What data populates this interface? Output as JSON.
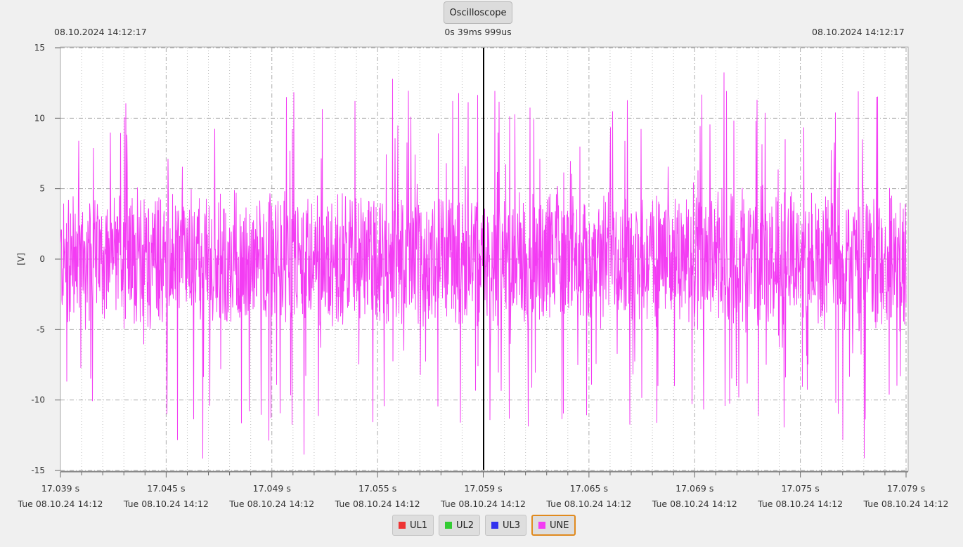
{
  "toolbar": {
    "oscilloscope_label": "Oscilloscope"
  },
  "header": {
    "start_time": "08.10.2024 14:12:17",
    "duration": "0s 39ms 999us",
    "end_time": "08.10.2024 14:12:17"
  },
  "chart_data": {
    "type": "line",
    "ylabel": "[V]",
    "ylim": [
      -15,
      15
    ],
    "y_ticks": [
      "15",
      "10",
      "5",
      "0",
      "-5",
      "-10",
      "-15"
    ],
    "x_ticks": [
      {
        "time": "17.039 s",
        "date": "Tue 08.10.24 14:12"
      },
      {
        "time": "17.045 s",
        "date": "Tue 08.10.24 14:12"
      },
      {
        "time": "17.049 s",
        "date": "Tue 08.10.24 14:12"
      },
      {
        "time": "17.055 s",
        "date": "Tue 08.10.24 14:12"
      },
      {
        "time": "17.059 s",
        "date": "Tue 08.10.24 14:12"
      },
      {
        "time": "17.065 s",
        "date": "Tue 08.10.24 14:12"
      },
      {
        "time": "17.069 s",
        "date": "Tue 08.10.24 14:12"
      },
      {
        "time": "17.075 s",
        "date": "Tue 08.10.24 14:12"
      },
      {
        "time": "17.079 s",
        "date": "Tue 08.10.24 14:12"
      }
    ],
    "grid": true,
    "cursor_time": "17.059 s",
    "series": [
      {
        "name": "UNE",
        "color": "#f33cf3",
        "typical_range": [
          -5,
          5
        ],
        "peak_max": 14.2,
        "peak_min": -14.5
      }
    ]
  },
  "legend": {
    "items": [
      {
        "label": "UL1",
        "color": "#ee3333",
        "active": false
      },
      {
        "label": "UL2",
        "color": "#33cc33",
        "active": false
      },
      {
        "label": "UL3",
        "color": "#3333ee",
        "active": false
      },
      {
        "label": "UNE",
        "color": "#f33cf3",
        "active": true
      }
    ]
  }
}
